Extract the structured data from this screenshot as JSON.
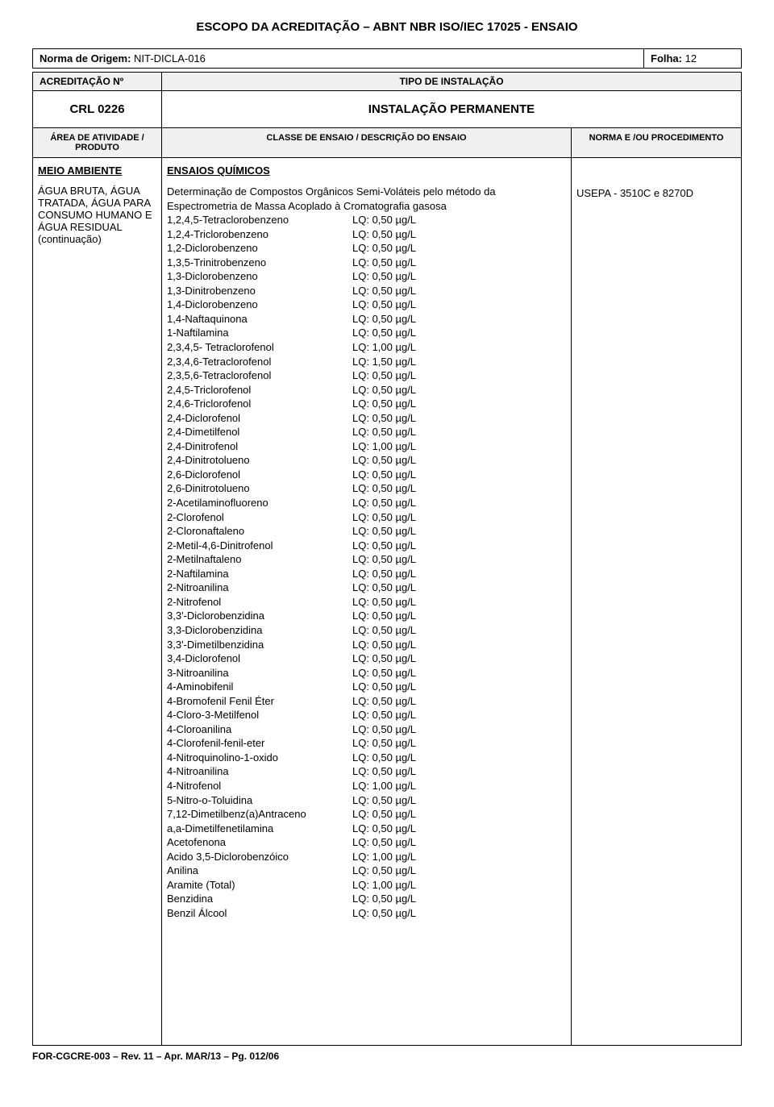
{
  "title": "ESCOPO DA ACREDITAÇÃO – ABNT NBR ISO/IEC 17025 - ENSAIO",
  "norma_origem_label": "Norma de Origem:",
  "norma_origem_value": "NIT-DICLA-016",
  "folha_label": "Folha:",
  "folha_value": "12",
  "acreditacao_label": "ACREDITAÇÃO Nº",
  "tipo_instalacao_label": "TIPO DE INSTALAÇÃO",
  "crl_value": "CRL 0226",
  "instalacao_value": "INSTALAÇÃO PERMANENTE",
  "header_area": "ÁREA DE ATIVIDADE / PRODUTO",
  "header_classe": "CLASSE DE ENSAIO / DESCRIÇÃO DO ENSAIO",
  "header_norma": "NORMA E /OU PROCEDIMENTO",
  "area_title": "MEIO AMBIENTE",
  "area_text": "ÁGUA BRUTA, ÁGUA TRATADA, ÁGUA PARA CONSUMO HUMANO E ÁGUA RESIDUAL (continuação)",
  "classe_title": "ENSAIOS QUÍMICOS",
  "classe_intro": "Determinação de Compostos Orgânicos Semi-Voláteis pelo método da Espectrometria de Massa Acoplado à Cromatografia gasosa",
  "norma_value": "USEPA - 3510C e 8270D",
  "compounds": [
    {
      "name": "1,2,4,5-Tetraclorobenzeno",
      "lq": "LQ: 0,50 µg/L"
    },
    {
      "name": "1,2,4-Triclorobenzeno",
      "lq": "LQ: 0,50 µg/L"
    },
    {
      "name": "1,2-Diclorobenzeno",
      "lq": "LQ: 0,50 µg/L"
    },
    {
      "name": "1,3,5-Trinitrobenzeno",
      "lq": "LQ: 0,50 µg/L"
    },
    {
      "name": "1,3-Diclorobenzeno",
      "lq": "LQ: 0,50 µg/L"
    },
    {
      "name": "1,3-Dinitrobenzeno",
      "lq": "LQ: 0,50 µg/L"
    },
    {
      "name": "1,4-Diclorobenzeno",
      "lq": "LQ: 0,50 µg/L"
    },
    {
      "name": "1,4-Naftaquinona",
      "lq": "LQ: 0,50 µg/L"
    },
    {
      "name": "1-Naftilamina",
      "lq": "LQ: 0,50 µg/L"
    },
    {
      "name": "2,3,4,5- Tetraclorofenol",
      "lq": "LQ: 1,00 µg/L"
    },
    {
      "name": "2,3,4,6-Tetraclorofenol",
      "lq": "LQ: 1,50 µg/L"
    },
    {
      "name": "2,3,5,6-Tetraclorofenol",
      "lq": "LQ: 0,50 µg/L"
    },
    {
      "name": "2,4,5-Triclorofenol",
      "lq": "LQ: 0,50 µg/L"
    },
    {
      "name": "2,4,6-Triclorofenol",
      "lq": "LQ: 0,50 µg/L"
    },
    {
      "name": "2,4-Diclorofenol",
      "lq": "LQ: 0,50 µg/L"
    },
    {
      "name": "2,4-Dimetilfenol",
      "lq": "LQ: 0,50 µg/L"
    },
    {
      "name": "2,4-Dinitrofenol",
      "lq": "LQ: 1,00 µg/L"
    },
    {
      "name": "2,4-Dinitrotolueno",
      "lq": "LQ: 0,50 µg/L"
    },
    {
      "name": "2,6-Diclorofenol",
      "lq": "LQ: 0,50 µg/L"
    },
    {
      "name": "2,6-Dinitrotolueno",
      "lq": "LQ: 0,50 µg/L"
    },
    {
      "name": "2-Acetilaminofluoreno",
      "lq": "LQ: 0,50 µg/L"
    },
    {
      "name": "2-Clorofenol",
      "lq": "LQ: 0,50 µg/L"
    },
    {
      "name": "2-Cloronaftaleno",
      "lq": "LQ: 0,50 µg/L"
    },
    {
      "name": "2-Metil-4,6-Dinitrofenol",
      "lq": "LQ: 0,50 µg/L"
    },
    {
      "name": "2-Metilnaftaleno",
      "lq": "LQ: 0,50 µg/L"
    },
    {
      "name": "2-Naftilamina",
      "lq": "LQ: 0,50 µg/L"
    },
    {
      "name": "2-Nitroanilina",
      "lq": "LQ: 0,50 µg/L"
    },
    {
      "name": "2-Nitrofenol",
      "lq": "LQ: 0,50 µg/L"
    },
    {
      "name": "3,3'-Diclorobenzidina",
      "lq": "LQ: 0,50 µg/L"
    },
    {
      "name": "3,3-Diclorobenzidina",
      "lq": "LQ: 0,50 µg/L"
    },
    {
      "name": "3,3'-Dimetilbenzidina",
      "lq": "LQ: 0,50 µg/L"
    },
    {
      "name": "3,4-Diclorofenol",
      "lq": "LQ: 0,50 µg/L"
    },
    {
      "name": "3-Nitroanilina",
      "lq": "LQ: 0,50 µg/L"
    },
    {
      "name": "4-Aminobifenil",
      "lq": "LQ: 0,50 µg/L"
    },
    {
      "name": "4-Bromofenil Fenil Éter",
      "lq": "LQ: 0,50 µg/L"
    },
    {
      "name": "4-Cloro-3-Metilfenol",
      "lq": "LQ: 0,50 µg/L"
    },
    {
      "name": "4-Cloroanilina",
      "lq": "LQ: 0,50 µg/L"
    },
    {
      "name": "4-Clorofenil-fenil-eter",
      "lq": "LQ: 0,50 µg/L"
    },
    {
      "name": "4-Nitroquinolino-1-oxido",
      "lq": "LQ: 0,50 µg/L"
    },
    {
      "name": "4-Nitroanilina",
      "lq": "LQ: 0,50 µg/L"
    },
    {
      "name": "4-Nitrofenol",
      "lq": "LQ: 1,00 µg/L"
    },
    {
      "name": "5-Nitro-o-Toluidina",
      "lq": "LQ: 0,50 µg/L"
    },
    {
      "name": "7,12-Dimetilbenz(a)Antraceno",
      "lq": "LQ: 0,50 µg/L"
    },
    {
      "name": "a,a-Dimetilfenetilamina",
      "lq": "LQ: 0,50 µg/L"
    },
    {
      "name": "Acetofenona",
      "lq": "LQ: 0,50 µg/L"
    },
    {
      "name": "Acido 3,5-Diclorobenzóico",
      "lq": "LQ: 1,00 µg/L"
    },
    {
      "name": "Anilina",
      "lq": "LQ: 0,50 µg/L"
    },
    {
      "name": "Aramite (Total)",
      "lq": "LQ: 1,00 µg/L"
    },
    {
      "name": "Benzidina",
      "lq": "LQ: 0,50 µg/L"
    },
    {
      "name": "Benzil Álcool",
      "lq": "LQ: 0,50 µg/L"
    }
  ],
  "footer": "FOR-CGCRE-003 – Rev. 11 – Apr. MAR/13 – Pg. 012/06"
}
